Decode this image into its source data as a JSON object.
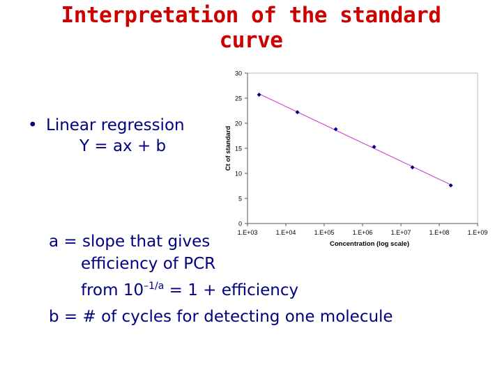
{
  "title": {
    "line1": "Interpretation of the standard",
    "line2": "curve"
  },
  "bullet": {
    "symbol": "•",
    "heading": "Linear regression",
    "equation": "Y = ax + b"
  },
  "notes": {
    "a_line1": "a = slope that gives",
    "a_line2": "efficiency of PCR",
    "a_line3_prefix": "from 10",
    "a_line3_exponent": "–1/a",
    "a_line3_suffix": " = 1 + efficiency",
    "b_line": "b = # of cycles for detecting one molecule"
  },
  "colors": {
    "title": "#cc0000",
    "text": "#000080",
    "series": "#000080",
    "trendline": "#cc33cc"
  },
  "chart_data": {
    "type": "scatter",
    "xlabel": "Concentration (log scale)",
    "ylabel": "Ct of standard",
    "x_scale": "log",
    "x_tick_labels": [
      "1.E+03",
      "1.E+04",
      "1.E+05",
      "1.E+06",
      "1.E+07",
      "1.E+08",
      "1.E+09"
    ],
    "y_tick_labels": [
      "0",
      "5",
      "10",
      "15",
      "20",
      "25",
      "30"
    ],
    "ylim": [
      0,
      30
    ],
    "xlim": [
      1000,
      1000000000
    ],
    "grid": false,
    "legend": false,
    "x": [
      2000,
      20000,
      200000,
      2000000,
      20000000,
      200000000
    ],
    "y": [
      25.7,
      22.2,
      18.8,
      15.3,
      11.2,
      7.6
    ],
    "trendline": true
  }
}
